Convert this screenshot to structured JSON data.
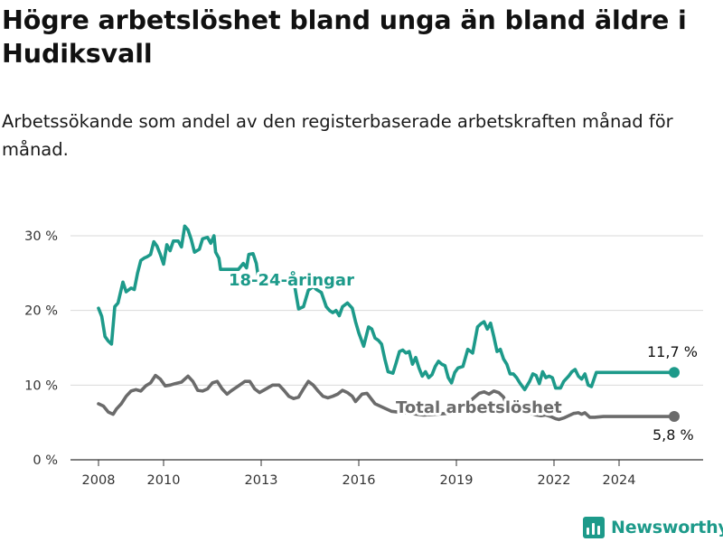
{
  "title": "Högre arbetslöshet bland unga än bland äldre i Hudiksvall",
  "subtitle": "Arbetssökande som andel av den registerbaserade arbetskraften månad för månad.",
  "brand": {
    "name": "Newsworthy",
    "icon": "newsworthy-logo-icon",
    "color": "#1d9a8a"
  },
  "chart_data": {
    "type": "line",
    "title": "Högre arbetslöshet bland unga än bland äldre i Hudiksvall",
    "subtitle": "Arbetssökande som andel av den registerbaserade arbetskraften månad för månad.",
    "ylim": [
      0,
      33
    ],
    "yticks": [
      0,
      10,
      20,
      30
    ],
    "ytick_labels": [
      "0 %",
      "10 %",
      "20 %",
      "30 %"
    ],
    "xlim": [
      2007.6,
      2024.9
    ],
    "xticks": [
      2008,
      2010,
      2013,
      2016,
      2019,
      2022,
      2024
    ],
    "xtick_labels": [
      "2008",
      "2010",
      "2013",
      "2016",
      "2019",
      "2022",
      "2024"
    ],
    "grid": "horizontal",
    "series": [
      {
        "name": "18-24-åringar",
        "color": "#1d9a8a",
        "end_label": "11,7 %",
        "points": [
          [
            2008.0,
            20.3
          ],
          [
            2008.1,
            19.2
          ],
          [
            2008.2,
            16.5
          ],
          [
            2008.3,
            15.9
          ],
          [
            2008.4,
            15.5
          ],
          [
            2008.5,
            20.5
          ],
          [
            2008.6,
            21.0
          ],
          [
            2008.75,
            23.8
          ],
          [
            2008.85,
            22.5
          ],
          [
            2009.0,
            23.0
          ],
          [
            2009.1,
            22.8
          ],
          [
            2009.2,
            25.0
          ],
          [
            2009.3,
            26.7
          ],
          [
            2009.4,
            27.0
          ],
          [
            2009.5,
            27.2
          ],
          [
            2009.6,
            27.5
          ],
          [
            2009.7,
            29.2
          ],
          [
            2009.8,
            28.6
          ],
          [
            2009.9,
            27.5
          ],
          [
            2010.0,
            26.2
          ],
          [
            2010.1,
            28.8
          ],
          [
            2010.2,
            28.0
          ],
          [
            2010.3,
            29.3
          ],
          [
            2010.45,
            29.3
          ],
          [
            2010.55,
            28.5
          ],
          [
            2010.65,
            31.3
          ],
          [
            2010.75,
            30.8
          ],
          [
            2010.85,
            29.5
          ],
          [
            2010.95,
            27.8
          ],
          [
            2011.1,
            28.2
          ],
          [
            2011.2,
            29.6
          ],
          [
            2011.35,
            29.8
          ],
          [
            2011.45,
            29.0
          ],
          [
            2011.55,
            30.0
          ],
          [
            2011.6,
            27.8
          ],
          [
            2011.7,
            27.0
          ],
          [
            2011.75,
            25.5
          ],
          [
            2012.3,
            25.5
          ],
          [
            2012.45,
            26.3
          ],
          [
            2012.55,
            25.7
          ],
          [
            2012.62,
            27.5
          ],
          [
            2012.75,
            27.6
          ],
          [
            2012.85,
            26.3
          ],
          [
            2012.9,
            24.8
          ],
          [
            2014.0,
            24.0
          ],
          [
            2014.15,
            20.2
          ],
          [
            2014.3,
            20.5
          ],
          [
            2014.45,
            22.7
          ],
          [
            2014.6,
            23.2
          ],
          [
            2014.7,
            22.8
          ],
          [
            2014.85,
            22.4
          ],
          [
            2015.0,
            20.5
          ],
          [
            2015.1,
            20.0
          ],
          [
            2015.2,
            19.7
          ],
          [
            2015.3,
            20.0
          ],
          [
            2015.4,
            19.3
          ],
          [
            2015.5,
            20.5
          ],
          [
            2015.65,
            21.0
          ],
          [
            2015.8,
            20.3
          ],
          [
            2015.9,
            18.5
          ],
          [
            2016.0,
            17.0
          ],
          [
            2016.15,
            15.2
          ],
          [
            2016.3,
            17.8
          ],
          [
            2016.4,
            17.5
          ],
          [
            2016.5,
            16.3
          ],
          [
            2016.6,
            16.0
          ],
          [
            2016.7,
            15.5
          ],
          [
            2016.8,
            13.5
          ],
          [
            2016.9,
            11.8
          ],
          [
            2017.05,
            11.6
          ],
          [
            2017.15,
            13.0
          ],
          [
            2017.25,
            14.5
          ],
          [
            2017.35,
            14.7
          ],
          [
            2017.45,
            14.3
          ],
          [
            2017.55,
            14.5
          ],
          [
            2017.65,
            12.8
          ],
          [
            2017.75,
            13.7
          ],
          [
            2017.85,
            12.3
          ],
          [
            2017.95,
            11.2
          ],
          [
            2018.05,
            11.8
          ],
          [
            2018.15,
            11.0
          ],
          [
            2018.25,
            11.4
          ],
          [
            2018.35,
            12.5
          ],
          [
            2018.45,
            13.2
          ],
          [
            2018.55,
            12.8
          ],
          [
            2018.65,
            12.6
          ],
          [
            2018.75,
            11.0
          ],
          [
            2018.85,
            10.3
          ],
          [
            2018.95,
            11.7
          ],
          [
            2019.05,
            12.3
          ],
          [
            2019.2,
            12.5
          ],
          [
            2019.35,
            14.8
          ],
          [
            2019.5,
            14.3
          ],
          [
            2019.65,
            17.8
          ],
          [
            2019.75,
            18.2
          ],
          [
            2019.85,
            18.5
          ],
          [
            2019.95,
            17.5
          ],
          [
            2020.05,
            18.3
          ],
          [
            2020.15,
            16.5
          ],
          [
            2020.25,
            14.5
          ],
          [
            2020.35,
            14.8
          ],
          [
            2020.45,
            13.5
          ],
          [
            2020.55,
            12.8
          ],
          [
            2020.65,
            11.5
          ],
          [
            2020.75,
            11.5
          ],
          [
            2020.85,
            11.0
          ],
          [
            2020.95,
            10.3
          ],
          [
            2021.1,
            9.4
          ],
          [
            2021.25,
            10.5
          ],
          [
            2021.35,
            11.5
          ],
          [
            2021.45,
            11.3
          ],
          [
            2021.55,
            10.2
          ],
          [
            2021.65,
            11.8
          ],
          [
            2021.75,
            11.0
          ],
          [
            2021.85,
            11.2
          ],
          [
            2021.95,
            11.0
          ],
          [
            2022.05,
            9.6
          ],
          [
            2022.2,
            9.6
          ],
          [
            2022.3,
            10.5
          ],
          [
            2022.45,
            11.2
          ],
          [
            2022.55,
            11.8
          ],
          [
            2022.65,
            12.1
          ],
          [
            2022.75,
            11.2
          ],
          [
            2022.85,
            10.8
          ],
          [
            2022.95,
            11.5
          ],
          [
            2023.05,
            10.0
          ],
          [
            2023.15,
            9.8
          ],
          [
            2023.3,
            11.7
          ],
          [
            2023.45,
            11.7
          ],
          [
            2023.52,
            11.7
          ]
        ]
      },
      {
        "name": "Total arbetslöshet",
        "color": "#6b6b6b",
        "end_label": "5,8 %",
        "points": [
          [
            2008.0,
            7.5
          ],
          [
            2008.15,
            7.2
          ],
          [
            2008.3,
            6.4
          ],
          [
            2008.45,
            6.1
          ],
          [
            2008.55,
            6.8
          ],
          [
            2008.7,
            7.5
          ],
          [
            2008.85,
            8.5
          ],
          [
            2009.0,
            9.2
          ],
          [
            2009.15,
            9.4
          ],
          [
            2009.3,
            9.2
          ],
          [
            2009.45,
            9.9
          ],
          [
            2009.6,
            10.3
          ],
          [
            2009.75,
            11.3
          ],
          [
            2009.9,
            10.8
          ],
          [
            2010.05,
            9.9
          ],
          [
            2010.2,
            10.0
          ],
          [
            2010.35,
            10.2
          ],
          [
            2010.55,
            10.4
          ],
          [
            2010.75,
            11.2
          ],
          [
            2010.9,
            10.5
          ],
          [
            2011.05,
            9.3
          ],
          [
            2011.2,
            9.2
          ],
          [
            2011.35,
            9.5
          ],
          [
            2011.5,
            10.3
          ],
          [
            2011.65,
            10.5
          ],
          [
            2011.8,
            9.5
          ],
          [
            2011.95,
            8.8
          ],
          [
            2012.1,
            9.3
          ],
          [
            2012.3,
            9.9
          ],
          [
            2012.5,
            10.5
          ],
          [
            2012.65,
            10.5
          ],
          [
            2012.8,
            9.5
          ],
          [
            2012.95,
            9.0
          ],
          [
            2013.15,
            9.5
          ],
          [
            2013.35,
            10.0
          ],
          [
            2013.55,
            10.0
          ],
          [
            2013.7,
            9.3
          ],
          [
            2013.85,
            8.5
          ],
          [
            2014.0,
            8.2
          ],
          [
            2014.15,
            8.4
          ],
          [
            2014.3,
            9.5
          ],
          [
            2014.45,
            10.5
          ],
          [
            2014.6,
            10.0
          ],
          [
            2014.75,
            9.2
          ],
          [
            2014.9,
            8.5
          ],
          [
            2015.05,
            8.3
          ],
          [
            2015.2,
            8.5
          ],
          [
            2015.35,
            8.8
          ],
          [
            2015.5,
            9.3
          ],
          [
            2015.65,
            9.0
          ],
          [
            2015.8,
            8.5
          ],
          [
            2015.9,
            7.8
          ],
          [
            2016.1,
            8.8
          ],
          [
            2016.25,
            8.9
          ],
          [
            2016.5,
            7.5
          ],
          [
            2017.0,
            6.5
          ],
          [
            2018.0,
            6.0
          ],
          [
            2019.0,
            6.3
          ],
          [
            2019.7,
            8.9
          ],
          [
            2019.85,
            9.1
          ],
          [
            2020.0,
            8.8
          ],
          [
            2020.15,
            9.2
          ],
          [
            2020.3,
            9.0
          ],
          [
            2020.45,
            8.4
          ],
          [
            2020.55,
            7.2
          ],
          [
            2020.7,
            7.0
          ],
          [
            2020.85,
            6.8
          ],
          [
            2021.0,
            6.6
          ],
          [
            2021.15,
            6.4
          ],
          [
            2021.3,
            6.2
          ],
          [
            2021.45,
            6.0
          ],
          [
            2021.6,
            5.9
          ],
          [
            2021.75,
            6.0
          ],
          [
            2021.9,
            5.8
          ],
          [
            2022.05,
            5.5
          ],
          [
            2022.15,
            5.4
          ],
          [
            2022.3,
            5.6
          ],
          [
            2022.45,
            5.9
          ],
          [
            2022.6,
            6.2
          ],
          [
            2022.75,
            6.3
          ],
          [
            2022.85,
            6.1
          ],
          [
            2022.95,
            6.3
          ],
          [
            2023.1,
            5.7
          ],
          [
            2023.25,
            5.7
          ],
          [
            2023.52,
            5.8
          ]
        ]
      }
    ]
  }
}
